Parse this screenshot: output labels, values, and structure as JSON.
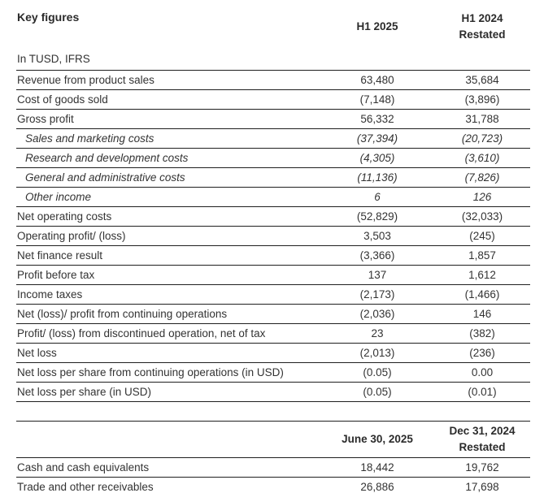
{
  "income_statement": {
    "title": "Key figures",
    "unit_note": "In TUSD, IFRS",
    "columns": [
      {
        "line1": "H1 2025",
        "line2": ""
      },
      {
        "line1": "H1 2024",
        "line2": "Restated"
      }
    ],
    "rows": [
      {
        "label": "Revenue from product sales",
        "values": [
          "63,480",
          "35,684"
        ]
      },
      {
        "label": "Cost of goods sold",
        "values": [
          "(7,148)",
          "(3,896)"
        ]
      },
      {
        "label": "Gross profit",
        "values": [
          "56,332",
          "31,788"
        ]
      },
      {
        "label": "Sales and marketing costs",
        "values": [
          "(37,394)",
          "(20,723)"
        ],
        "style": "italic-indent"
      },
      {
        "label": "Research and development costs",
        "values": [
          "(4,305)",
          "(3,610)"
        ],
        "style": "italic-indent"
      },
      {
        "label": "General and administrative costs",
        "values": [
          "(11,136)",
          "(7,826)"
        ],
        "style": "italic-indent"
      },
      {
        "label": "Other income",
        "values": [
          "6",
          "126"
        ],
        "style": "italic-indent"
      },
      {
        "label": "Net operating costs",
        "values": [
          "(52,829)",
          "(32,033)"
        ]
      },
      {
        "label": "Operating profit/ (loss)",
        "values": [
          "3,503",
          "(245)"
        ]
      },
      {
        "label": "Net finance result",
        "values": [
          "(3,366)",
          "1,857"
        ]
      },
      {
        "label": "Profit before tax",
        "values": [
          "137",
          "1,612"
        ]
      },
      {
        "label": "Income taxes",
        "values": [
          "(2,173)",
          "(1,466)"
        ]
      },
      {
        "label": "Net (loss)/ profit from continuing operations",
        "values": [
          "(2,036)",
          "146"
        ]
      },
      {
        "label": "Profit/ (loss) from discontinued operation, net of tax",
        "values": [
          "23",
          "(382)"
        ]
      },
      {
        "label": "Net loss",
        "values": [
          "(2,013)",
          "(236)"
        ]
      },
      {
        "label": "Net loss per share from continuing operations (in USD)",
        "values": [
          "(0.05)",
          "0.00"
        ]
      },
      {
        "label": "Net loss per share (in USD)",
        "values": [
          "(0.05)",
          "(0.01)"
        ]
      }
    ]
  },
  "balance_sheet": {
    "columns": [
      {
        "line1": "June 30, 2025",
        "line2": ""
      },
      {
        "line1": "Dec 31, 2024",
        "line2": "Restated"
      }
    ],
    "rows": [
      {
        "label": "Cash and cash equivalents",
        "values": [
          "18,442",
          "19,762"
        ]
      },
      {
        "label": "Trade and other receivables",
        "values": [
          "26,886",
          "17,698"
        ]
      }
    ]
  },
  "colors": {
    "text": "#333333",
    "heading": "#2b2b2b",
    "rule_lines": "#1f1f1f",
    "background": "#ffffff"
  }
}
